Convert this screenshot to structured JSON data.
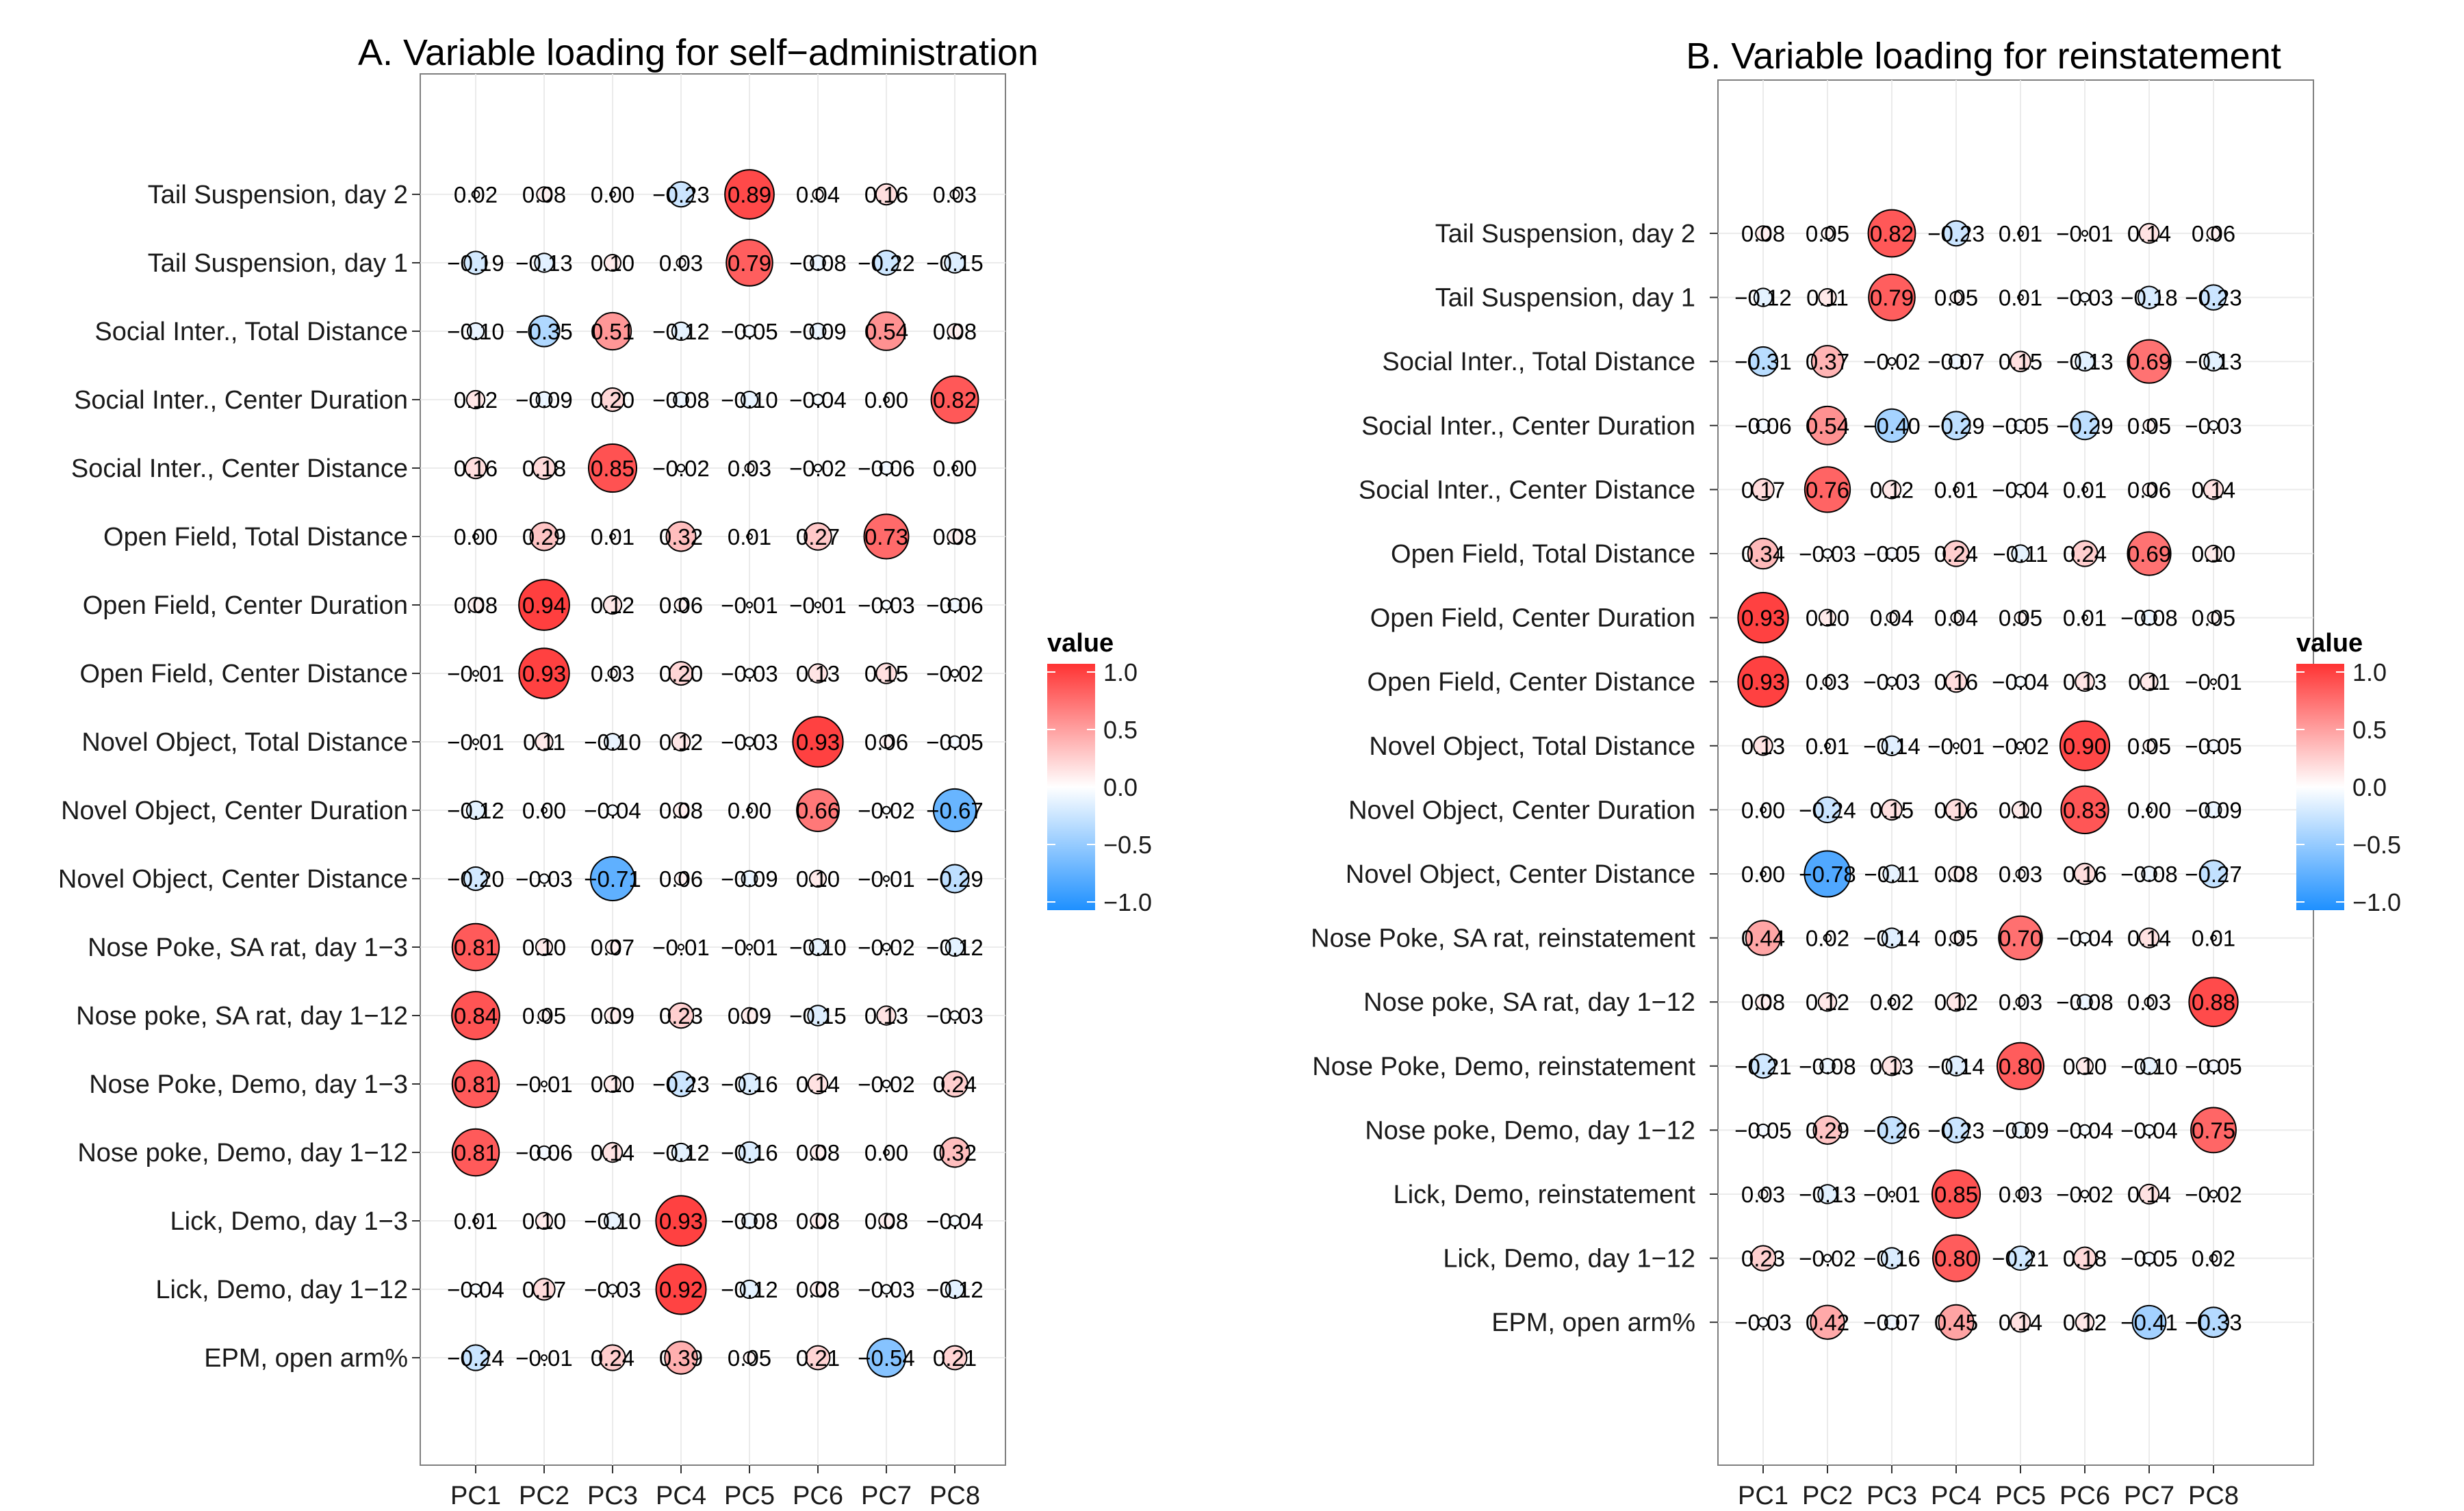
{
  "chart_data": [
    {
      "type": "heatmap",
      "title": "A. Variable loading for self−administration",
      "columns": [
        "PC1",
        "PC2",
        "PC3",
        "PC4",
        "PC5",
        "PC6",
        "PC7",
        "PC8"
      ],
      "rows": [
        "Tail Suspension, day 2",
        "Tail Suspension, day 1",
        "Social Inter., Total Distance",
        "Social Inter., Center Duration",
        "Social Inter., Center Distance",
        "Open Field, Total Distance",
        "Open Field, Center Duration",
        "Open Field, Center Distance",
        "Novel Object, Total Distance",
        "Novel Object, Center Duration",
        "Novel Object, Center Distance",
        "Nose Poke, SA rat, day 1−3",
        "Nose poke, SA rat, day 1−12",
        "Nose Poke, Demo, day 1−3",
        "Nose poke, Demo, day 1−12",
        "Lick, Demo, day 1−3",
        "Lick, Demo, day 1−12",
        "EPM, open arm%"
      ],
      "values": [
        [
          0.02,
          0.08,
          0.0,
          -0.23,
          0.89,
          0.04,
          0.16,
          0.03
        ],
        [
          -0.19,
          -0.13,
          0.1,
          0.03,
          0.79,
          -0.08,
          -0.22,
          -0.15
        ],
        [
          -0.1,
          -0.35,
          0.51,
          -0.12,
          -0.05,
          -0.09,
          0.54,
          0.08
        ],
        [
          0.12,
          -0.09,
          0.2,
          -0.08,
          -0.1,
          -0.04,
          0.0,
          0.82
        ],
        [
          0.16,
          0.18,
          0.85,
          -0.02,
          0.03,
          -0.02,
          -0.06,
          0.0
        ],
        [
          0.0,
          0.29,
          0.01,
          0.32,
          0.01,
          0.27,
          0.73,
          0.08
        ],
        [
          0.08,
          0.94,
          0.12,
          0.06,
          -0.01,
          -0.01,
          -0.03,
          -0.06
        ],
        [
          -0.01,
          0.93,
          0.03,
          0.2,
          -0.03,
          0.13,
          0.15,
          -0.02
        ],
        [
          -0.01,
          0.11,
          -0.1,
          0.12,
          -0.03,
          0.93,
          0.06,
          -0.05
        ],
        [
          -0.12,
          0.0,
          -0.04,
          0.08,
          0.0,
          0.66,
          -0.02,
          -0.67
        ],
        [
          -0.2,
          -0.03,
          -0.71,
          0.06,
          -0.09,
          0.1,
          -0.01,
          -0.29
        ],
        [
          0.81,
          0.1,
          0.07,
          -0.01,
          -0.01,
          -0.1,
          -0.02,
          -0.12
        ],
        [
          0.84,
          0.05,
          0.09,
          0.23,
          0.09,
          -0.15,
          0.13,
          -0.03
        ],
        [
          0.81,
          -0.01,
          0.1,
          -0.23,
          -0.16,
          0.14,
          -0.02,
          0.24
        ],
        [
          0.81,
          -0.06,
          0.14,
          -0.12,
          -0.16,
          0.08,
          0.0,
          0.32
        ],
        [
          0.01,
          0.1,
          -0.1,
          0.93,
          -0.08,
          0.08,
          0.08,
          -0.04
        ],
        [
          -0.04,
          0.17,
          -0.03,
          0.92,
          -0.12,
          0.08,
          -0.03,
          -0.12
        ],
        [
          -0.24,
          -0.01,
          0.24,
          0.39,
          0.05,
          0.21,
          -0.54,
          0.21
        ]
      ],
      "labels": [
        [
          "0.02",
          "0.08",
          "0.00",
          "−0.23",
          "0.89",
          "0.04",
          "0.16",
          "0.03"
        ],
        [
          "−0.19",
          "−0.13",
          "0.10",
          "0.03",
          "0.79",
          "−0.08",
          "−0.22",
          "−0.15"
        ],
        [
          "−0.10",
          "−0.35",
          "0.51",
          "−0.12",
          "−0.05",
          "−0.09",
          "0.54",
          "0.08"
        ],
        [
          "0.12",
          "−0.09",
          "0.20",
          "−0.08",
          "−0.10",
          "−0.04",
          "0.00",
          "0.82"
        ],
        [
          "0.16",
          "0.18",
          "0.85",
          "−0.02",
          "0.03",
          "−0.02",
          "−0.06",
          "0.00"
        ],
        [
          "0.00",
          "0.29",
          "0.01",
          "0.32",
          "0.01",
          "0.27",
          "0.73",
          "0.08"
        ],
        [
          "0.08",
          "0.94",
          "0.12",
          "0.06",
          "−0.01",
          "−0.01",
          "−0.03",
          "−0.06"
        ],
        [
          "−0.01",
          "0.93",
          "0.03",
          "0.20",
          "−0.03",
          "0.13",
          "0.15",
          "−0.02"
        ],
        [
          "−0.01",
          "0.11",
          "−0.10",
          "0.12",
          "−0.03",
          "0.93",
          "0.06",
          "−0.05"
        ],
        [
          "−0.12",
          "0.00",
          "−0.04",
          "0.08",
          "0.00",
          "0.66",
          "−0.02",
          "−0.67"
        ],
        [
          "−0.20",
          "−0.03",
          "−0.71",
          "0.06",
          "−0.09",
          "0.10",
          "−0.01",
          "−0.29"
        ],
        [
          "0.81",
          "0.10",
          "0.07",
          "−0.01",
          "−0.01",
          "−0.10",
          "−0.02",
          "−0.12"
        ],
        [
          "0.84",
          "0.05",
          "0.09",
          "0.23",
          "0.09",
          "−0.15",
          "0.13",
          "−0.03"
        ],
        [
          "0.81",
          "−0.01",
          "0.10",
          "−0.23",
          "−0.16",
          "0.14",
          "−0.02",
          "0.24"
        ],
        [
          "0.81",
          "−0.06",
          "0.14",
          "−0.12",
          "−0.16",
          "0.08",
          "0.00",
          "0.32"
        ],
        [
          "0.01",
          "0.10",
          "−0.10",
          "0.93",
          "−0.08",
          "0.08",
          "0.08",
          "−0.04"
        ],
        [
          "−0.04",
          "0.17",
          "−0.03",
          "0.92",
          "−0.12",
          "0.08",
          "−0.03",
          "−0.12"
        ],
        [
          "−0.24",
          "−0.01",
          "0.24",
          "0.39",
          "0.05",
          "0.21",
          "−0.54",
          "0.21"
        ]
      ],
      "legend": {
        "title": "value",
        "ticks": [
          "1.0",
          "0.5",
          "0.0",
          "−0.5",
          "−1.0"
        ],
        "range": [
          -1,
          1
        ],
        "position": "right"
      },
      "grid": true
    },
    {
      "type": "heatmap",
      "title": "B. Variable loading for reinstatement",
      "columns": [
        "PC1",
        "PC2",
        "PC3",
        "PC4",
        "PC5",
        "PC6",
        "PC7",
        "PC8"
      ],
      "rows": [
        "Tail Suspension, day 2",
        "Tail Suspension, day 1",
        "Social Inter., Total Distance",
        "Social Inter., Center Duration",
        "Social Inter., Center Distance",
        "Open Field, Total Distance",
        "Open Field, Center Duration",
        "Open Field, Center Distance",
        "Novel Object, Total Distance",
        "Novel Object, Center Duration",
        "Novel Object, Center Distance",
        "Nose Poke, SA rat, reinstatement",
        "Nose poke, SA rat, day 1−12",
        "Nose Poke, Demo, reinstatement",
        "Nose poke, Demo, day 1−12",
        "Lick, Demo, reinstatement",
        "Lick, Demo, day 1−12",
        "EPM, open arm%"
      ],
      "values": [
        [
          0.08,
          0.05,
          0.82,
          -0.23,
          0.01,
          -0.01,
          0.14,
          0.06
        ],
        [
          -0.12,
          0.11,
          0.79,
          0.05,
          0.01,
          -0.03,
          -0.18,
          -0.23
        ],
        [
          -0.31,
          0.37,
          -0.02,
          -0.07,
          0.15,
          -0.13,
          0.69,
          -0.13
        ],
        [
          -0.06,
          0.54,
          -0.4,
          -0.29,
          -0.05,
          -0.29,
          0.05,
          -0.03
        ],
        [
          0.17,
          0.76,
          0.12,
          0.01,
          -0.04,
          0.01,
          0.06,
          0.14
        ],
        [
          0.34,
          -0.03,
          -0.05,
          0.24,
          -0.11,
          0.24,
          0.69,
          0.1
        ],
        [
          0.93,
          0.1,
          0.04,
          0.04,
          0.05,
          0.01,
          -0.08,
          0.05
        ],
        [
          0.93,
          0.03,
          -0.03,
          0.16,
          -0.04,
          0.13,
          0.11,
          -0.01
        ],
        [
          0.13,
          0.01,
          -0.14,
          -0.01,
          -0.02,
          0.9,
          0.05,
          -0.05
        ],
        [
          0.0,
          -0.24,
          0.15,
          0.16,
          0.1,
          0.83,
          0.0,
          -0.09
        ],
        [
          0.0,
          -0.78,
          -0.11,
          0.08,
          0.03,
          0.16,
          -0.08,
          -0.27
        ],
        [
          0.44,
          0.02,
          -0.14,
          0.05,
          0.7,
          -0.04,
          0.14,
          0.01
        ],
        [
          0.08,
          0.12,
          0.02,
          0.12,
          0.03,
          -0.08,
          0.03,
          0.88
        ],
        [
          -0.21,
          -0.08,
          0.13,
          -0.14,
          0.8,
          0.1,
          -0.1,
          -0.05
        ],
        [
          -0.05,
          0.29,
          -0.26,
          -0.23,
          -0.09,
          -0.04,
          -0.04,
          0.75
        ],
        [
          0.03,
          -0.13,
          -0.01,
          0.85,
          0.03,
          -0.02,
          0.14,
          -0.02
        ],
        [
          0.23,
          -0.02,
          -0.16,
          0.8,
          -0.21,
          0.18,
          -0.05,
          0.02
        ],
        [
          -0.03,
          0.42,
          -0.07,
          0.45,
          0.14,
          0.12,
          -0.41,
          -0.33
        ]
      ],
      "labels": [
        [
          "0.08",
          "0.05",
          "0.82",
          "−0.23",
          "0.01",
          "−0.01",
          "0.14",
          "0.06"
        ],
        [
          "−0.12",
          "0.11",
          "0.79",
          "0.05",
          "0.01",
          "−0.03",
          "−0.18",
          "−0.23"
        ],
        [
          "−0.31",
          "0.37",
          "−0.02",
          "−0.07",
          "0.15",
          "−0.13",
          "0.69",
          "−0.13"
        ],
        [
          "−0.06",
          "0.54",
          "−0.40",
          "−0.29",
          "−0.05",
          "−0.29",
          "0.05",
          "−0.03"
        ],
        [
          "0.17",
          "0.76",
          "0.12",
          "0.01",
          "−0.04",
          "0.01",
          "0.06",
          "0.14"
        ],
        [
          "0.34",
          "−0.03",
          "−0.05",
          "0.24",
          "−0.11",
          "0.24",
          "0.69",
          "0.10"
        ],
        [
          "0.93",
          "0.10",
          "0.04",
          "0.04",
          "0.05",
          "0.01",
          "−0.08",
          "0.05"
        ],
        [
          "0.93",
          "0.03",
          "−0.03",
          "0.16",
          "−0.04",
          "0.13",
          "0.11",
          "−0.01"
        ],
        [
          "0.13",
          "0.01",
          "−0.14",
          "−0.01",
          "−0.02",
          "0.90",
          "0.05",
          "−0.05"
        ],
        [
          "0.00",
          "−0.24",
          "0.15",
          "0.16",
          "0.10",
          "0.83",
          "0.00",
          "−0.09"
        ],
        [
          "0.00",
          "−0.78",
          "−0.11",
          "0.08",
          "0.03",
          "0.16",
          "−0.08",
          "−0.27"
        ],
        [
          "0.44",
          "0.02",
          "−0.14",
          "0.05",
          "0.70",
          "−0.04",
          "0.14",
          "0.01"
        ],
        [
          "0.08",
          "0.12",
          "0.02",
          "0.12",
          "0.03",
          "−0.08",
          "0.03",
          "0.88"
        ],
        [
          "−0.21",
          "−0.08",
          "0.13",
          "−0.14",
          "0.80",
          "0.10",
          "−0.10",
          "−0.05"
        ],
        [
          "−0.05",
          "0.29",
          "−0.26",
          "−0.23",
          "−0.09",
          "−0.04",
          "−0.04",
          "0.75"
        ],
        [
          "0.03",
          "−0.13",
          "−0.01",
          "0.85",
          "0.03",
          "−0.02",
          "0.14",
          "−0.02"
        ],
        [
          "0.23",
          "−0.02",
          "−0.16",
          "0.80",
          "−0.21",
          "0.18",
          "−0.05",
          "0.02"
        ],
        [
          "−0.03",
          "0.42",
          "−0.07",
          "0.45",
          "0.14",
          "0.12",
          "−0.41",
          "−0.33"
        ]
      ],
      "legend": {
        "title": "value",
        "ticks": [
          "1.0",
          "0.5",
          "0.0",
          "−0.5",
          "−1.0"
        ],
        "range": [
          -1,
          1
        ],
        "position": "right"
      },
      "grid": true
    }
  ]
}
